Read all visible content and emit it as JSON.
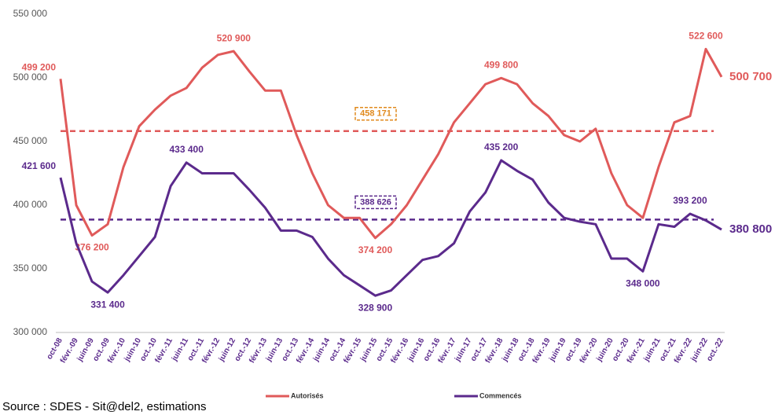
{
  "chart_data": {
    "type": "line",
    "categories": [
      "oct-08",
      "févr.-09",
      "juin-09",
      "oct.-09",
      "févr.-10",
      "juin-10",
      "oct.-10",
      "févr.-11",
      "juin-11",
      "oct.-11",
      "févr.-12",
      "juin-12",
      "oct.-12",
      "févr.-13",
      "juin-13",
      "oct.-13",
      "févr.-14",
      "juin-14",
      "oct.-14",
      "févr.-15",
      "juin-15",
      "oct.-15",
      "févr.-16",
      "juin-16",
      "oct.-16",
      "févr.-17",
      "juin-17",
      "oct.-17",
      "févr.-18",
      "juin-18",
      "oct.-18",
      "févr.-19",
      "juin-19",
      "oct.-19",
      "févr.-20",
      "juin-20",
      "oct.-20",
      "févr.-21",
      "juin-21",
      "oct.-21",
      "févr.-22",
      "juin-22",
      "oct.-22"
    ],
    "series": [
      {
        "name": "Autorisés",
        "color": "#e05a5a",
        "values": [
          499200,
          400000,
          376200,
          385000,
          430000,
          462000,
          475000,
          486000,
          492000,
          508000,
          518000,
          520900,
          505000,
          490000,
          490000,
          455000,
          425000,
          400000,
          390000,
          390000,
          374200,
          385000,
          400000,
          420000,
          440000,
          465000,
          480000,
          495000,
          499800,
          495000,
          480000,
          470000,
          455000,
          450000,
          460000,
          425000,
          400000,
          390000,
          430000,
          465000,
          470000,
          522600,
          500700
        ],
        "value_labels": [
          "499 200",
          null,
          "376 200",
          null,
          null,
          null,
          null,
          null,
          null,
          null,
          null,
          "520 900",
          null,
          null,
          null,
          null,
          null,
          null,
          null,
          null,
          "374 200",
          null,
          null,
          null,
          null,
          null,
          null,
          null,
          "499 800",
          null,
          null,
          null,
          null,
          null,
          null,
          null,
          null,
          null,
          null,
          null,
          null,
          "522 600",
          "500 700"
        ]
      },
      {
        "name": "Commencés",
        "color": "#5b2a8c",
        "values": [
          421600,
          370000,
          340000,
          331400,
          345000,
          360000,
          375000,
          415000,
          433400,
          425000,
          425000,
          425000,
          412000,
          398000,
          380000,
          380000,
          375000,
          358000,
          345000,
          337000,
          328900,
          333000,
          345000,
          357000,
          360000,
          370000,
          395000,
          410000,
          435200,
          427000,
          420000,
          402000,
          390000,
          387000,
          385000,
          358000,
          358000,
          348000,
          385000,
          383000,
          393200,
          388000,
          380800
        ],
        "value_labels": [
          "421 600",
          null,
          null,
          "331 400",
          null,
          null,
          null,
          null,
          "433 400",
          null,
          null,
          null,
          null,
          null,
          null,
          null,
          null,
          null,
          null,
          null,
          "328 900",
          null,
          null,
          null,
          null,
          null,
          null,
          null,
          "435 200",
          null,
          null,
          null,
          null,
          null,
          null,
          null,
          null,
          "348 000",
          null,
          null,
          "393 200",
          null,
          "380 800"
        ]
      }
    ],
    "reference_lines": [
      {
        "value": 458171,
        "label": "458 171",
        "color": "#e05a5a",
        "label_color": "#e08a1e"
      },
      {
        "value": 388626,
        "label": "388 626",
        "color": "#5b2a8c",
        "label_color": "#5b2a8c"
      }
    ],
    "ylim": [
      300000,
      550000
    ],
    "yticks": [
      {
        "value": 300000,
        "label": "300 000"
      },
      {
        "value": 350000,
        "label": "350 000"
      },
      {
        "value": 400000,
        "label": "400 000"
      },
      {
        "value": 450000,
        "label": "450 000"
      },
      {
        "value": 500000,
        "label": "500 000"
      },
      {
        "value": 550000,
        "label": "550 000"
      }
    ],
    "source": "Source : SDES - Sit@del2, estimations"
  }
}
